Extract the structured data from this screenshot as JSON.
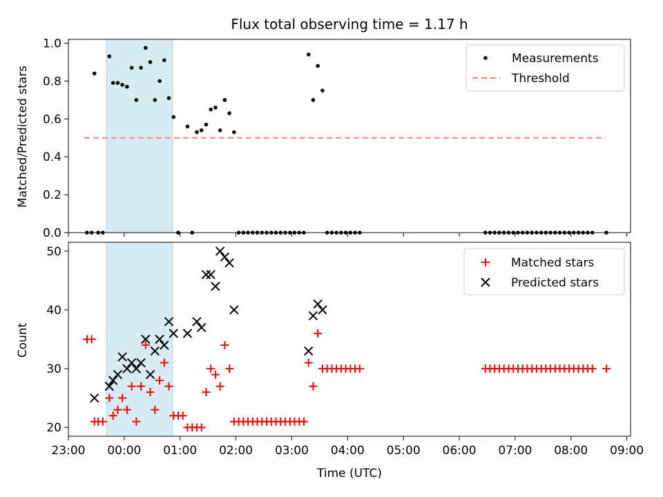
{
  "chart_data": [
    {
      "type": "scatter",
      "title": "Flux total observing time = 1.17 h",
      "xlabel": "",
      "ylabel": "Matched/Predicted stars",
      "ylim": [
        0,
        1.02
      ],
      "yticks": [
        "0.0",
        "0.2",
        "0.4",
        "0.6",
        "0.8",
        "1.0"
      ],
      "highlight_region": {
        "x_start": "23:41",
        "x_end": "00:52",
        "color": "#add8e6"
      },
      "legend_position": "top-right",
      "series": [
        {
          "name": "Measurements",
          "marker": "dot",
          "color": "#000000",
          "points": [
            [
              "23:20",
              0
            ],
            [
              "23:25",
              0
            ],
            [
              "23:28",
              0.84
            ],
            [
              "23:32",
              0
            ],
            [
              "23:37",
              0
            ],
            [
              "23:44",
              0.93
            ],
            [
              "23:48",
              0.79
            ],
            [
              "23:53",
              0.79
            ],
            [
              "23:58",
              0.78
            ],
            [
              "00:03",
              0.77
            ],
            [
              "00:08",
              0.87
            ],
            [
              "00:13",
              0.7
            ],
            [
              "00:18",
              0.87
            ],
            [
              "00:23",
              0.975
            ],
            [
              "00:28",
              0.9
            ],
            [
              "00:33",
              0.7
            ],
            [
              "00:38",
              0.8
            ],
            [
              "00:43",
              0.91
            ],
            [
              "00:48",
              0.71
            ],
            [
              "00:53",
              0.61
            ],
            [
              "00:58",
              0
            ],
            [
              "01:08",
              0.56
            ],
            [
              "01:13",
              0
            ],
            [
              "01:18",
              0.53
            ],
            [
              "01:23",
              0.54
            ],
            [
              "01:28",
              0.57
            ],
            [
              "01:33",
              0.65
            ],
            [
              "01:38",
              0.66
            ],
            [
              "01:43",
              0.54
            ],
            [
              "01:48",
              0.7
            ],
            [
              "01:53",
              0.63
            ],
            [
              "01:58",
              0.53
            ],
            [
              "02:03",
              0
            ],
            [
              "02:08",
              0
            ],
            [
              "02:13",
              0
            ],
            [
              "02:18",
              0
            ],
            [
              "02:23",
              0
            ],
            [
              "02:28",
              0
            ],
            [
              "02:33",
              0
            ],
            [
              "02:38",
              0
            ],
            [
              "02:43",
              0
            ],
            [
              "02:48",
              0
            ],
            [
              "02:53",
              0
            ],
            [
              "02:58",
              0
            ],
            [
              "03:03",
              0
            ],
            [
              "03:08",
              0
            ],
            [
              "03:13",
              0
            ],
            [
              "03:18",
              0.94
            ],
            [
              "03:23",
              0.7
            ],
            [
              "03:28",
              0.88
            ],
            [
              "03:33",
              0.75
            ],
            [
              "03:38",
              0
            ],
            [
              "03:43",
              0
            ],
            [
              "03:48",
              0
            ],
            [
              "03:53",
              0
            ],
            [
              "03:58",
              0
            ],
            [
              "04:03",
              0
            ],
            [
              "04:08",
              0
            ],
            [
              "04:13",
              0
            ],
            [
              "06:28",
              0
            ],
            [
              "06:33",
              0
            ],
            [
              "06:38",
              0
            ],
            [
              "06:43",
              0
            ],
            [
              "06:48",
              0
            ],
            [
              "06:53",
              0
            ],
            [
              "06:58",
              0
            ],
            [
              "07:03",
              0
            ],
            [
              "07:08",
              0
            ],
            [
              "07:13",
              0
            ],
            [
              "07:18",
              0
            ],
            [
              "07:23",
              0
            ],
            [
              "07:28",
              0
            ],
            [
              "07:33",
              0
            ],
            [
              "07:38",
              0
            ],
            [
              "07:43",
              0
            ],
            [
              "07:48",
              0
            ],
            [
              "07:53",
              0
            ],
            [
              "07:58",
              0
            ],
            [
              "08:03",
              0
            ],
            [
              "08:08",
              0
            ],
            [
              "08:13",
              0
            ],
            [
              "08:18",
              0
            ],
            [
              "08:23",
              0
            ],
            [
              "08:38",
              0
            ]
          ]
        },
        {
          "name": "Threshold",
          "style": "dashed",
          "color": "#ff7f7f",
          "points": [
            [
              "23:17",
              0.5
            ],
            [
              "08:37",
              0.5
            ]
          ]
        }
      ]
    },
    {
      "type": "scatter",
      "title": "",
      "xlabel": "Time (UTC)",
      "ylabel": "Count",
      "ylim": [
        18.5,
        51.5
      ],
      "yticks": [
        "20",
        "30",
        "40",
        "50"
      ],
      "xticks": [
        "23:00",
        "00:00",
        "01:00",
        "02:00",
        "03:00",
        "04:00",
        "05:00",
        "06:00",
        "07:00",
        "08:00",
        "09:00"
      ],
      "highlight_region": {
        "x_start": "23:41",
        "x_end": "00:52",
        "color": "#add8e6"
      },
      "legend_position": "top-right",
      "series": [
        {
          "name": "Matched stars",
          "marker": "plus",
          "color": "#ff0000",
          "points": [
            [
              "23:20",
              35
            ],
            [
              "23:25",
              35
            ],
            [
              "23:28",
              21
            ],
            [
              "23:32",
              21
            ],
            [
              "23:37",
              21
            ],
            [
              "23:44",
              25
            ],
            [
              "23:48",
              22
            ],
            [
              "23:53",
              23
            ],
            [
              "23:58",
              25
            ],
            [
              "00:03",
              23
            ],
            [
              "00:08",
              27
            ],
            [
              "00:13",
              21
            ],
            [
              "00:18",
              27
            ],
            [
              "00:23",
              34
            ],
            [
              "00:28",
              26
            ],
            [
              "00:33",
              23
            ],
            [
              "00:38",
              28
            ],
            [
              "00:43",
              31
            ],
            [
              "00:48",
              27
            ],
            [
              "00:53",
              22
            ],
            [
              "00:58",
              22
            ],
            [
              "01:03",
              22
            ],
            [
              "01:08",
              20
            ],
            [
              "01:13",
              20
            ],
            [
              "01:18",
              20
            ],
            [
              "01:23",
              20
            ],
            [
              "01:28",
              26
            ],
            [
              "01:33",
              30
            ],
            [
              "01:38",
              29
            ],
            [
              "01:43",
              27
            ],
            [
              "01:48",
              34
            ],
            [
              "01:53",
              30
            ],
            [
              "01:58",
              21
            ],
            [
              "02:03",
              21
            ],
            [
              "02:08",
              21
            ],
            [
              "02:13",
              21
            ],
            [
              "02:18",
              21
            ],
            [
              "02:23",
              21
            ],
            [
              "02:28",
              21
            ],
            [
              "02:33",
              21
            ],
            [
              "02:38",
              21
            ],
            [
              "02:43",
              21
            ],
            [
              "02:48",
              21
            ],
            [
              "02:53",
              21
            ],
            [
              "02:58",
              21
            ],
            [
              "03:03",
              21
            ],
            [
              "03:08",
              21
            ],
            [
              "03:13",
              21
            ],
            [
              "03:18",
              31
            ],
            [
              "03:23",
              27
            ],
            [
              "03:28",
              36
            ],
            [
              "03:33",
              30
            ],
            [
              "03:38",
              30
            ],
            [
              "03:43",
              30
            ],
            [
              "03:48",
              30
            ],
            [
              "03:53",
              30
            ],
            [
              "03:58",
              30
            ],
            [
              "04:03",
              30
            ],
            [
              "04:08",
              30
            ],
            [
              "04:13",
              30
            ],
            [
              "06:28",
              30
            ],
            [
              "06:33",
              30
            ],
            [
              "06:38",
              30
            ],
            [
              "06:43",
              30
            ],
            [
              "06:48",
              30
            ],
            [
              "06:53",
              30
            ],
            [
              "06:58",
              30
            ],
            [
              "07:03",
              30
            ],
            [
              "07:08",
              30
            ],
            [
              "07:13",
              30
            ],
            [
              "07:18",
              30
            ],
            [
              "07:23",
              30
            ],
            [
              "07:28",
              30
            ],
            [
              "07:33",
              30
            ],
            [
              "07:38",
              30
            ],
            [
              "07:43",
              30
            ],
            [
              "07:48",
              30
            ],
            [
              "07:53",
              30
            ],
            [
              "07:58",
              30
            ],
            [
              "08:03",
              30
            ],
            [
              "08:08",
              30
            ],
            [
              "08:13",
              30
            ],
            [
              "08:18",
              30
            ],
            [
              "08:23",
              30
            ],
            [
              "08:38",
              30
            ]
          ]
        },
        {
          "name": "Predicted stars",
          "marker": "x",
          "color": "#000000",
          "points": [
            [
              "23:28",
              25
            ],
            [
              "23:44",
              27
            ],
            [
              "23:48",
              28
            ],
            [
              "23:53",
              29
            ],
            [
              "23:58",
              32
            ],
            [
              "00:03",
              30
            ],
            [
              "00:08",
              31
            ],
            [
              "00:13",
              30
            ],
            [
              "00:18",
              31
            ],
            [
              "00:23",
              35
            ],
            [
              "00:28",
              29
            ],
            [
              "00:33",
              33
            ],
            [
              "00:38",
              35
            ],
            [
              "00:43",
              34
            ],
            [
              "00:48",
              38
            ],
            [
              "00:53",
              36
            ],
            [
              "01:08",
              36
            ],
            [
              "01:18",
              38
            ],
            [
              "01:23",
              37
            ],
            [
              "01:28",
              46
            ],
            [
              "01:33",
              46
            ],
            [
              "01:38",
              44
            ],
            [
              "01:43",
              50
            ],
            [
              "01:48",
              49
            ],
            [
              "01:53",
              48
            ],
            [
              "01:58",
              40
            ],
            [
              "03:18",
              33
            ],
            [
              "03:23",
              39
            ],
            [
              "03:28",
              41
            ],
            [
              "03:33",
              40
            ]
          ]
        }
      ]
    }
  ]
}
